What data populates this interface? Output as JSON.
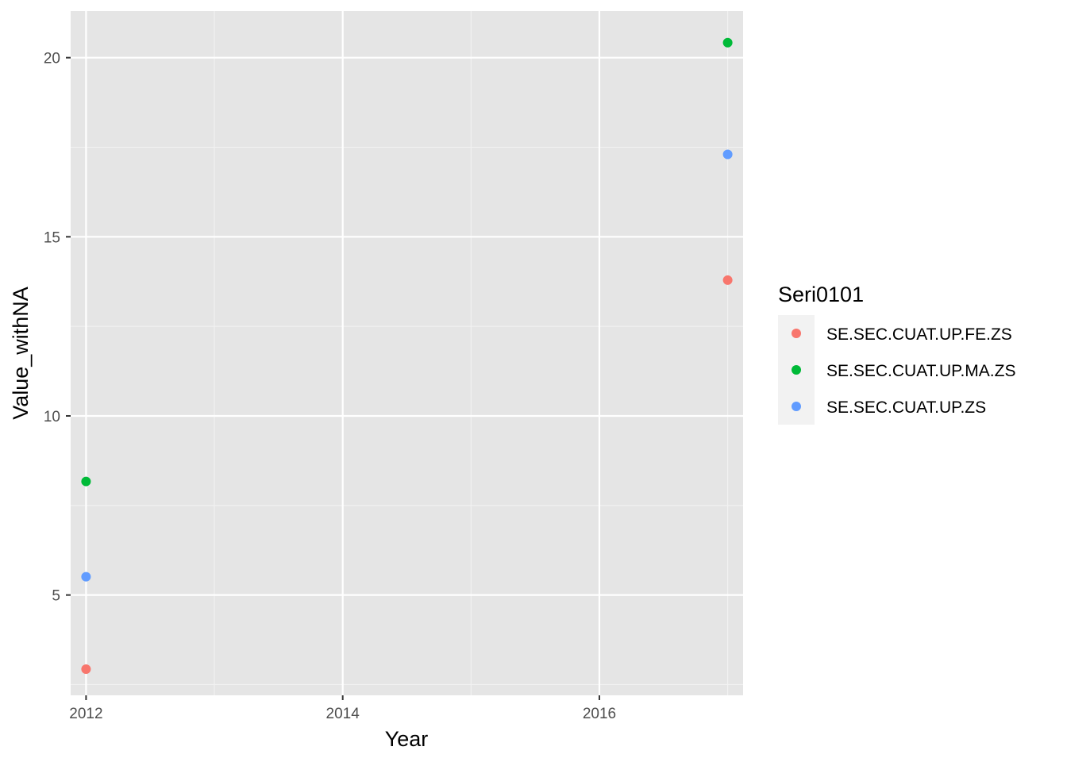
{
  "chart_data": {
    "type": "scatter",
    "xlabel": "Year",
    "ylabel": "Value_withNA",
    "xlim": [
      2011.88,
      2017.12
    ],
    "ylim": [
      2.2,
      21.3
    ],
    "x_ticks": [
      2012,
      2014,
      2016
    ],
    "x_tick_labels": [
      "2012",
      "2014",
      "2016"
    ],
    "y_ticks": [
      5,
      10,
      15,
      20
    ],
    "y_tick_labels": [
      "5",
      "10",
      "15",
      "20"
    ],
    "grid": true,
    "legend": {
      "title": "Seri0101",
      "position": "right"
    },
    "series": [
      {
        "name": "SE.SEC.CUAT.UP.FE.ZS",
        "color": "#F8766D",
        "x": [
          2012,
          2017
        ],
        "y": [
          2.93,
          13.79
        ]
      },
      {
        "name": "SE.SEC.CUAT.UP.MA.ZS",
        "color": "#00BA38",
        "x": [
          2012,
          2017
        ],
        "y": [
          8.17,
          20.42
        ]
      },
      {
        "name": "SE.SEC.CUAT.UP.ZS",
        "color": "#619CFF",
        "x": [
          2012,
          2017
        ],
        "y": [
          5.51,
          17.3
        ]
      }
    ]
  }
}
